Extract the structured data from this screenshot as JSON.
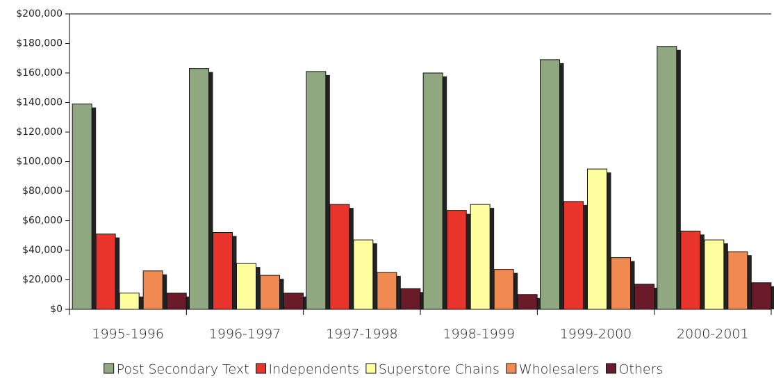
{
  "chart_data": {
    "type": "bar",
    "categories": [
      "1995-1996",
      "1996-1997",
      "1997-1998",
      "1998-1999",
      "1999-2000",
      "2000-2001"
    ],
    "series": [
      {
        "name": "Post Secondary Text",
        "color": "#8fa882",
        "values": [
          139000,
          163000,
          161000,
          160000,
          169000,
          178000
        ]
      },
      {
        "name": "Independents",
        "color": "#e8342a",
        "values": [
          51000,
          52000,
          71000,
          67000,
          73000,
          53000
        ]
      },
      {
        "name": "Superstore Chains",
        "color": "#ffffa0",
        "values": [
          11000,
          31000,
          47000,
          71000,
          95000,
          47000
        ]
      },
      {
        "name": "Wholesalers",
        "color": "#f08a50",
        "values": [
          26000,
          23000,
          25000,
          27000,
          35000,
          39000
        ]
      },
      {
        "name": "Others",
        "color": "#6b1a2a",
        "values": [
          11000,
          11000,
          14000,
          10000,
          17000,
          18000
        ]
      }
    ],
    "ylim": [
      0,
      200000
    ],
    "yticks": [
      {
        "value": 0,
        "label": "$0"
      },
      {
        "value": 20000,
        "label": "$20,000"
      },
      {
        "value": 40000,
        "label": "$40,000"
      },
      {
        "value": 60000,
        "label": "$60,000"
      },
      {
        "value": 80000,
        "label": "$80,000"
      },
      {
        "value": 100000,
        "label": "$100,000"
      },
      {
        "value": 120000,
        "label": "$120,000"
      },
      {
        "value": 140000,
        "label": "$140,000"
      },
      {
        "value": 160000,
        "label": "$160,000"
      },
      {
        "value": 180000,
        "label": "$180,000"
      },
      {
        "value": 200000,
        "label": "$200,000"
      }
    ]
  }
}
